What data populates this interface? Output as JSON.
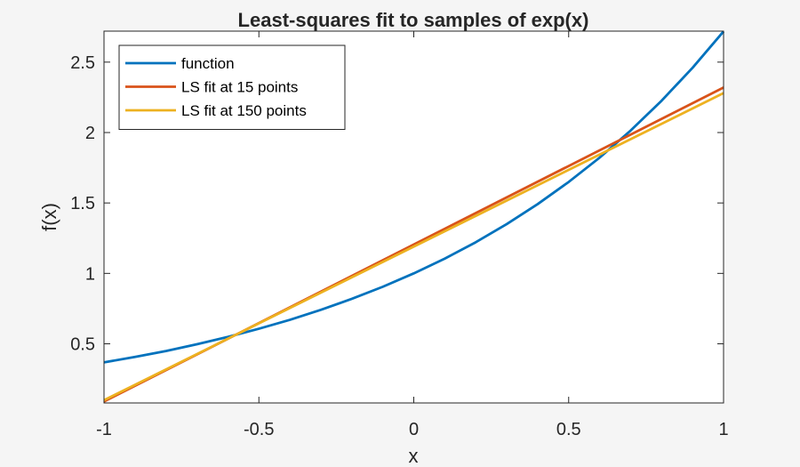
{
  "chart_data": {
    "type": "line",
    "title": "Least-squares fit to samples of exp(x)",
    "xlabel": "x",
    "ylabel": "f(x)",
    "xlim": [
      -1,
      1
    ],
    "ylim": [
      0.08,
      2.72
    ],
    "xticks": [
      -1,
      -0.5,
      0,
      0.5,
      1
    ],
    "xtick_labels": [
      "-1",
      "-0.5",
      "0",
      "0.5",
      "1"
    ],
    "yticks": [
      0.5,
      1,
      1.5,
      2,
      2.5
    ],
    "ytick_labels": [
      "0.5",
      "1",
      "1.5",
      "2",
      "2.5"
    ],
    "grid": false,
    "legend_position": "top-left",
    "series": [
      {
        "name": "function",
        "color": "#0072BD",
        "x": [
          -1,
          -0.9,
          -0.8,
          -0.7,
          -0.6,
          -0.5,
          -0.4,
          -0.3,
          -0.2,
          -0.1,
          0,
          0.1,
          0.2,
          0.3,
          0.4,
          0.5,
          0.6,
          0.7,
          0.8,
          0.9,
          1
        ],
        "y": [
          0.368,
          0.407,
          0.449,
          0.497,
          0.549,
          0.607,
          0.67,
          0.741,
          0.819,
          0.905,
          1.0,
          1.105,
          1.221,
          1.35,
          1.492,
          1.649,
          1.822,
          2.014,
          2.226,
          2.46,
          2.718
        ]
      },
      {
        "name": "LS fit at 15 points",
        "color": "#D95319",
        "x": [
          -1,
          1
        ],
        "y": [
          0.09,
          2.32
        ]
      },
      {
        "name": "LS fit at 150 points",
        "color": "#EDB120",
        "x": [
          -1,
          1
        ],
        "y": [
          0.1,
          2.28
        ]
      }
    ]
  }
}
